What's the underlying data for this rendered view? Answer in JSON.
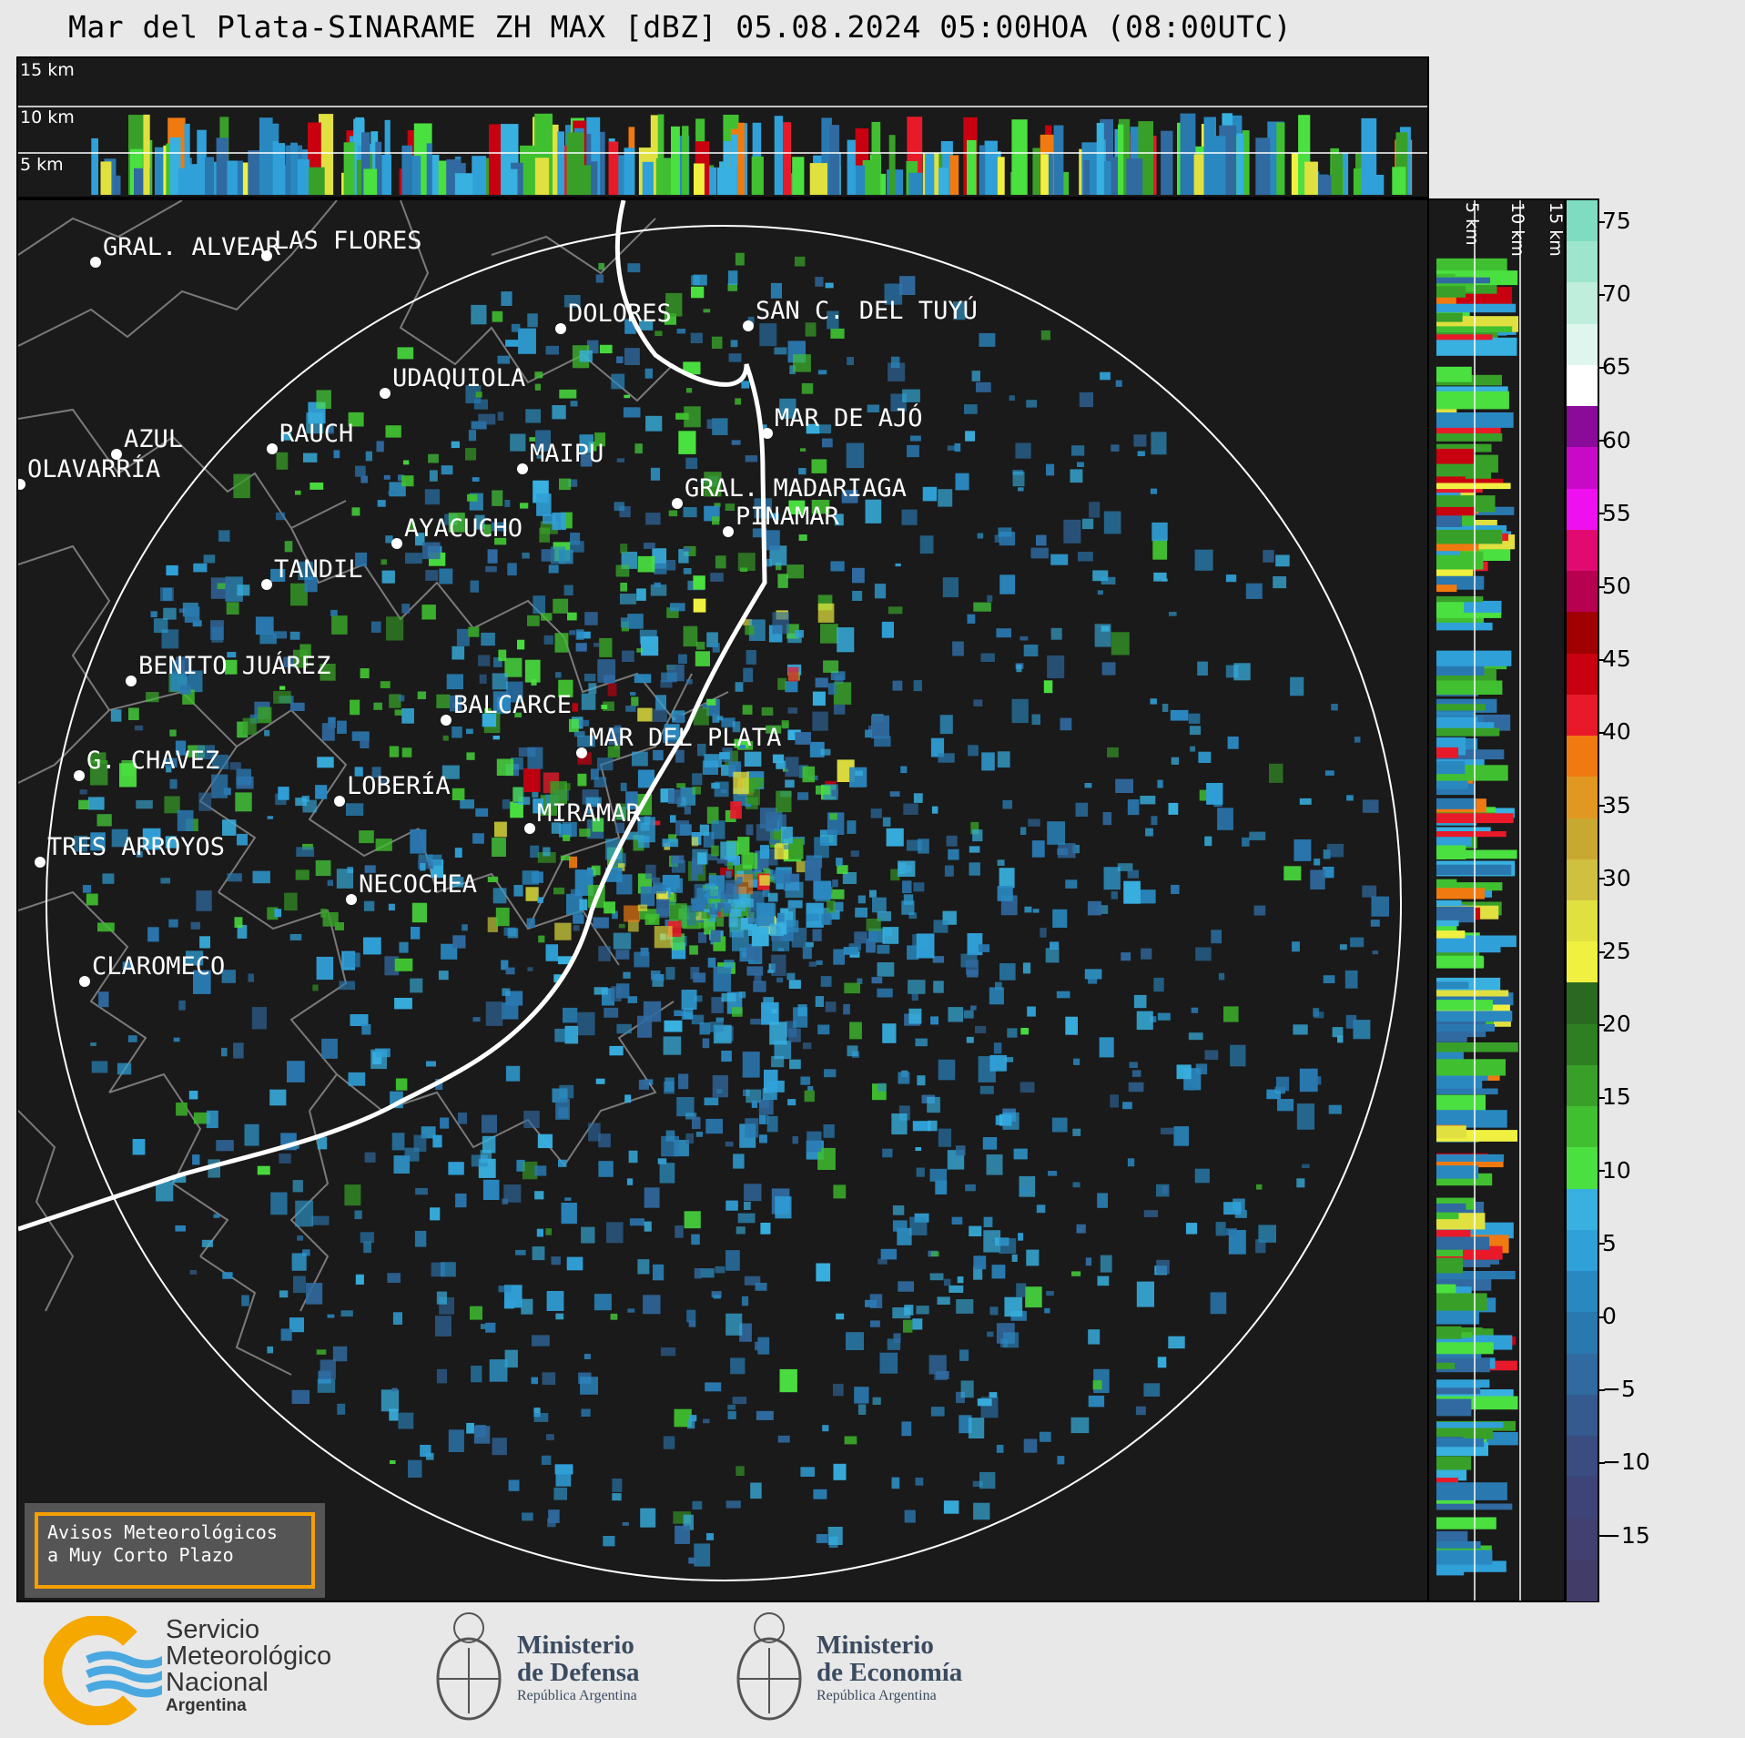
{
  "title": "Mar del Plata-SINARAME ZH MAX [dBZ] 05.08.2024 05:00HOA (08:00UTC)",
  "top_profile": {
    "labels": [
      "15 km",
      "10 km",
      "5 km"
    ]
  },
  "side_profile": {
    "labels": [
      "5 km",
      "10 km",
      "15 km"
    ]
  },
  "colorbar": {
    "ticks": [
      "75",
      "70",
      "65",
      "60",
      "55",
      "50",
      "45",
      "40",
      "35",
      "30",
      "25",
      "20",
      "15",
      "10",
      "5",
      "0",
      "−5",
      "−10",
      "−15"
    ],
    "colors": [
      "#7fdcc0",
      "#9de6cd",
      "#bfeedd",
      "#dff6ef",
      "#ffffff",
      "#8a0a9a",
      "#c80ac8",
      "#ee10ee",
      "#e00a70",
      "#b80050",
      "#a00000",
      "#c80010",
      "#e81a2a",
      "#f07a10",
      "#e09820",
      "#c8a830",
      "#d0c040",
      "#e0e040",
      "#f0f040",
      "#2a6a20",
      "#2e7e22",
      "#38a028",
      "#40c030",
      "#4ae040",
      "#38b0e0",
      "#30a0d8",
      "#2a88c0",
      "#2a78b0",
      "#306aa0",
      "#355a90",
      "#3a4c80",
      "#3e4478",
      "#414070",
      "#423c68"
    ],
    "accent_colors": {
      "panel_bg": "#1a1a1a",
      "range_ring": "#ffffff",
      "coast": "#ffffff",
      "borders": "#808080"
    }
  },
  "cities": [
    {
      "name": "GRAL. ALVEAR"
    },
    {
      "name": "LAS FLORES"
    },
    {
      "name": "DOLORES"
    },
    {
      "name": "SAN C. DEL TUYÚ"
    },
    {
      "name": "UDAQUIOLA"
    },
    {
      "name": "MAR DE AJÓ"
    },
    {
      "name": "AZUL"
    },
    {
      "name": "RAUCH"
    },
    {
      "name": "MAIPU"
    },
    {
      "name": "OLAVARRÍA"
    },
    {
      "name": "GRAL. MADARIAGA"
    },
    {
      "name": "PINAMAR"
    },
    {
      "name": "AYACUCHO"
    },
    {
      "name": "TANDIL"
    },
    {
      "name": "BENITO JUÁREZ"
    },
    {
      "name": "BALCARCE"
    },
    {
      "name": "MAR DEL PLATA"
    },
    {
      "name": "G. CHAVEZ"
    },
    {
      "name": "LOBERÍA"
    },
    {
      "name": "MIRAMAR"
    },
    {
      "name": "TRES ARROYOS"
    },
    {
      "name": "NECOCHEA"
    },
    {
      "name": "CLAROMECO"
    }
  ],
  "avisos": {
    "line1": "Avisos Meteorológicos",
    "line2": "a Muy Corto Plazo"
  },
  "logos": {
    "smn": {
      "line1": "Servicio",
      "line2": "Meteorológico",
      "line3": "Nacional",
      "line4": "Argentina"
    },
    "defensa": {
      "line1": "Ministerio",
      "line2": "de Defensa",
      "line3": "República Argentina"
    },
    "economia": {
      "line1": "Ministerio",
      "line2": "de Economía",
      "line3": "República Argentina"
    }
  }
}
